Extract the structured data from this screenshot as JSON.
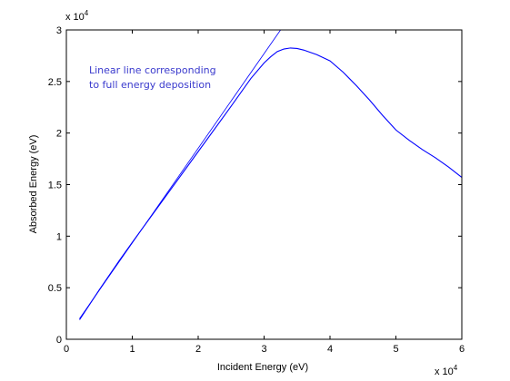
{
  "chart_data": {
    "type": "line",
    "xlabel": "Incident Energy (eV)",
    "ylabel": "Absorbed Energy (eV)",
    "x_multiplier": {
      "base": "x 10",
      "exp": "4"
    },
    "y_multiplier": {
      "base": "x 10",
      "exp": "4"
    },
    "xlim": [
      0,
      60000
    ],
    "ylim": [
      0,
      30000
    ],
    "x_ticks": [
      0,
      10000,
      20000,
      30000,
      40000,
      50000,
      60000
    ],
    "x_tick_labels": [
      "0",
      "1",
      "2",
      "3",
      "4",
      "5",
      "6"
    ],
    "y_ticks": [
      0,
      5000,
      10000,
      15000,
      20000,
      25000,
      30000
    ],
    "y_tick_labels": [
      "0",
      "0.5",
      "1",
      "1.5",
      "2",
      "2.5",
      "3"
    ],
    "grid": false,
    "line_color": "#0000ff",
    "annotation": {
      "lines": [
        "Linear line corresponding",
        "to full energy deposition"
      ],
      "color": "#3a3acd"
    },
    "series": [
      {
        "x": [
          2000,
          32500
        ],
        "y": [
          2000,
          30000
        ]
      },
      {
        "x": [
          2000,
          5000,
          8000,
          10000,
          15000,
          20000,
          25000,
          28000,
          30000,
          31000,
          32000,
          33000,
          34000,
          35000,
          36000,
          38000,
          40000,
          42000,
          44000,
          46000,
          48000,
          50000,
          52000,
          54000,
          56000,
          58000,
          60000
        ],
        "y": [
          1900,
          4800,
          7600,
          9400,
          13800,
          18200,
          22600,
          25300,
          26800,
          27400,
          27900,
          28150,
          28250,
          28200,
          28050,
          27600,
          27000,
          25900,
          24600,
          23200,
          21700,
          20300,
          19300,
          18400,
          17600,
          16700,
          15700
        ]
      }
    ]
  }
}
